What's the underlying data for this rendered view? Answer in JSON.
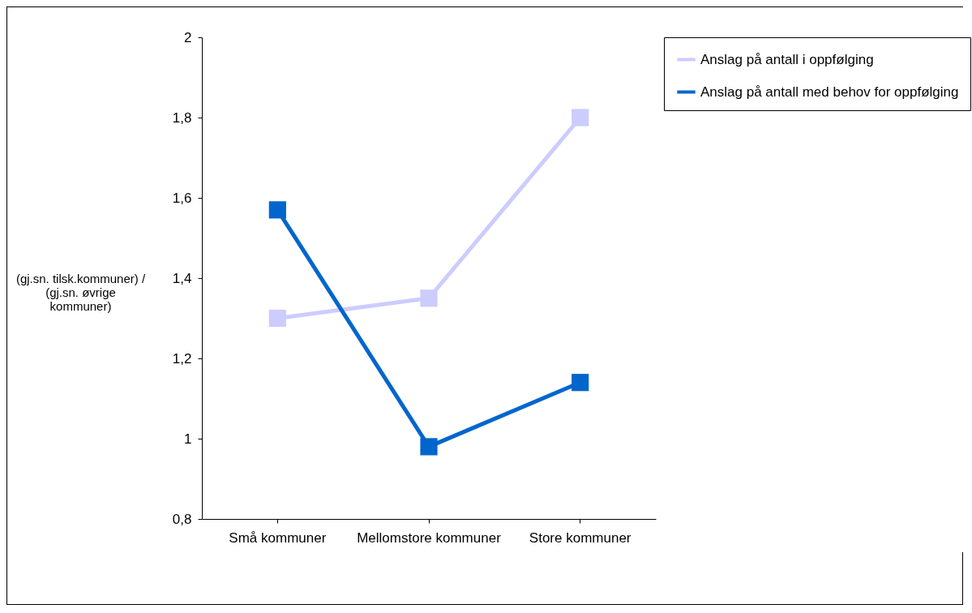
{
  "chart_data": {
    "type": "line",
    "ylabel": "(gj.sn. tilsk.kommuner) /\n(gj.sn. øvrige\nkommuner)",
    "categories": [
      "Små kommuner",
      "Mellomstore kommuner",
      "Store kommuner"
    ],
    "series": [
      {
        "name": "Anslag på antall i oppfølging",
        "color": "#ccccff",
        "values": [
          1.3,
          1.35,
          1.8
        ]
      },
      {
        "name": "Anslag på antall med behov for oppfølging",
        "color": "#0066cc",
        "values": [
          1.57,
          0.98,
          1.14
        ]
      }
    ],
    "ylim": [
      0.8,
      2
    ],
    "yticks": [
      {
        "value": 0.8,
        "label": "0,8"
      },
      1,
      {
        "value": 1.2,
        "label": "1,2"
      },
      {
        "value": 1.4,
        "label": "1,4"
      },
      {
        "value": 1.6,
        "label": "1,6"
      },
      {
        "value": 1.8,
        "label": "1,8"
      },
      2
    ],
    "grid": false,
    "legend": "right",
    "marker": "square",
    "line_style": "solid"
  }
}
